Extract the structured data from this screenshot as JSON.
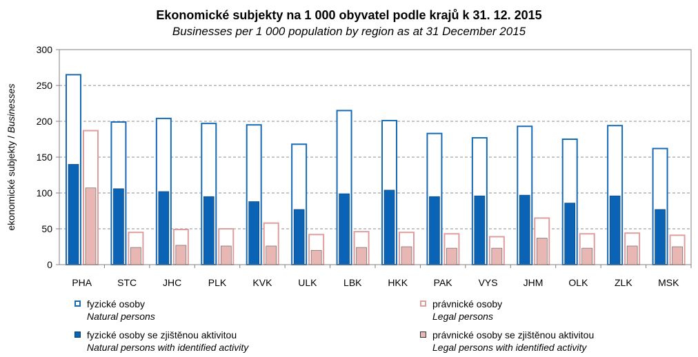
{
  "chart_data": {
    "type": "bar",
    "title": "Ekonomické subjekty na 1 000 obyvatel podle krajů k 31. 12. 2015",
    "subtitle": "Businesses per 1 000 population by region as at 31 December 2015",
    "ylabel_main": "ekonomické subjekty / ",
    "ylabel_italic": "Businesses",
    "xlabel": "",
    "ylim": [
      0,
      300
    ],
    "yticks": [
      0,
      50,
      100,
      150,
      200,
      250,
      300
    ],
    "grid": true,
    "categories": [
      "PHA",
      "STC",
      "JHC",
      "PLK",
      "KVK",
      "ULK",
      "LBK",
      "HKK",
      "PAK",
      "VYS",
      "JHM",
      "OLK",
      "ZLK",
      "MSK"
    ],
    "series": [
      {
        "name": "fyzické osoby",
        "name_en": "Natural persons",
        "style": "outline",
        "color": "#1569b5",
        "values": [
          265,
          199,
          204,
          197,
          195,
          168,
          215,
          201,
          183,
          177,
          193,
          175,
          194,
          162
        ]
      },
      {
        "name": "fyzické osoby se zjištěnou aktivitou",
        "name_en": "Natural persons with identified activity",
        "style": "filled",
        "color": "#0b63b6",
        "values": [
          140,
          106,
          102,
          95,
          88,
          77,
          99,
          104,
          95,
          96,
          97,
          86,
          96,
          77
        ]
      },
      {
        "name": "právnické osoby",
        "name_en": "Legal persons",
        "style": "outline",
        "color": "#df9d9e",
        "values": [
          187,
          45,
          49,
          50,
          58,
          42,
          46,
          45,
          43,
          39,
          65,
          43,
          44,
          41
        ]
      },
      {
        "name": "právnické osoby se zjištěnou aktivitou",
        "name_en": "Legal persons with identified activity",
        "style": "filled",
        "color": "#e8b6b3",
        "values": [
          107,
          24,
          27,
          26,
          26,
          20,
          24,
          25,
          23,
          23,
          37,
          23,
          26,
          25
        ]
      }
    ]
  }
}
